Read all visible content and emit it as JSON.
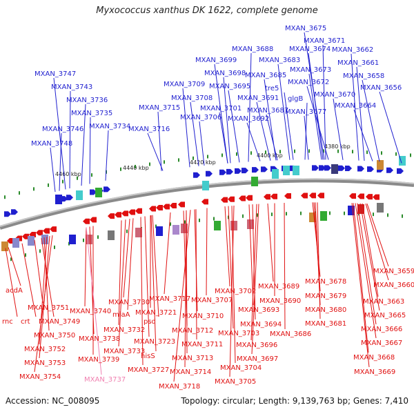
{
  "title": "Myxococcus xanthus DK 1622, complete genome",
  "footer": {
    "accession_label": "Accession: NC_008095",
    "summary": "Topology: circular; Length: 9,139,763 bp; Genes: 7,410"
  },
  "colors": {
    "forward": "#1f1fcf",
    "reverse": "#e01010",
    "highlight": "#f080b0",
    "backbone": "#888888"
  },
  "scale_labels": [
    "4460 kbp",
    "4440 kbp",
    "4420 kbp",
    "4400 kbp",
    "4380 kbp"
  ],
  "forward_genes": [
    "MXAN_3675",
    "MXAN_3671",
    "MXAN_3674",
    "MXAN_3662",
    "MXAN_3688",
    "MXAN_3683",
    "MXAN_3661",
    "MXAN_3699",
    "MXAN_3673",
    "MXAN_3747",
    "MXAN_3698",
    "MXAN_3685",
    "MXAN_3658",
    "MXAN_3743",
    "MXAN_3709",
    "MXAN_3695",
    "MXAN_3672",
    "tre5",
    "MXAN_3656",
    "MXAN_3736",
    "MXAN_3708",
    "MXAN_3691",
    "glgB",
    "MXAN_3670",
    "MXAN_3735",
    "MXAN_3715",
    "MXAN_3701",
    "MXAN_3687",
    "MXAN_3677",
    "MXAN_3664",
    "MXAN_3706",
    "MXAN_3692",
    "MXAN_3734",
    "MXAN_3746",
    "MXAN_3716",
    "MXAN_3748"
  ],
  "reverse_genes": [
    "acdA",
    "MXAN_3751",
    "rnc",
    "crt",
    "MXAN_3749",
    "MXAN_3750",
    "MXAN_3752",
    "MXAN_3753",
    "MXAN_3754",
    "MXAN_3740",
    "MXAN_3730",
    "miaA",
    "MXAN_3738",
    "MXAN_3732",
    "MXAN_3739",
    "MXAN_3733",
    "MXAN_3721",
    "psd",
    "hisS",
    "MXAN_3723",
    "MXAN_3727",
    "MXAN_3717",
    "MXAN_3710",
    "MXAN_3712",
    "MXAN_3711",
    "MXAN_3713",
    "MXAN_3714",
    "MXAN_3718",
    "MXAN_3707",
    "MXAN_3702",
    "MXAN_3703",
    "MXAN_3704",
    "MXAN_3705",
    "MXAN_3693",
    "MXAN_3694",
    "MXAN_3696",
    "MXAN_3697",
    "MXAN_3689",
    "MXAN_3690",
    "MXAN_3686",
    "MXAN_3678",
    "MXAN_3679",
    "MXAN_3680",
    "MXAN_3681",
    "MXAN_3659",
    "MXAN_3660",
    "MXAN_3663",
    "MXAN_3665",
    "MXAN_3666",
    "MXAN_3667",
    "MXAN_3668",
    "MXAN_3669"
  ],
  "highlight_gene": "MXAN_3737"
}
